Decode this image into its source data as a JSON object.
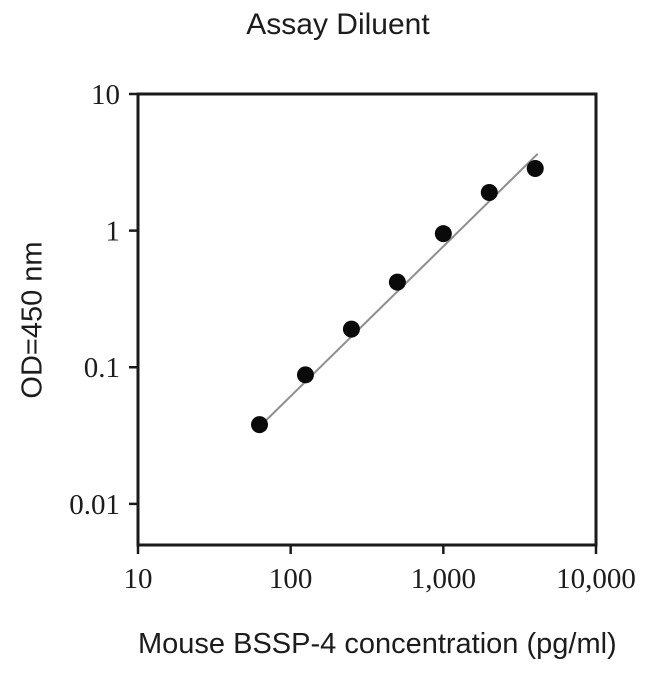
{
  "figure": {
    "background": "#ffffff"
  },
  "chart_data": {
    "type": "scatter",
    "title": "Assay Diluent",
    "xlabel": "Mouse BSSP-4 concentration (pg/ml)",
    "ylabel": "OD=450 nm",
    "x_scale": "log",
    "y_scale": "log",
    "xlim": [
      10,
      10000
    ],
    "ylim": [
      0.005,
      10
    ],
    "grid": false,
    "legend": false,
    "x_ticks": [
      {
        "value": 10,
        "label": "10"
      },
      {
        "value": 100,
        "label": "100"
      },
      {
        "value": 1000,
        "label": "1,000"
      },
      {
        "value": 10000,
        "label": "10,000"
      }
    ],
    "y_ticks": [
      {
        "value": 10,
        "label": "10"
      },
      {
        "value": 1,
        "label": "1"
      },
      {
        "value": 0.1,
        "label": "0.1"
      },
      {
        "value": 0.01,
        "label": "0.01"
      }
    ],
    "series": [
      {
        "name": "standard-curve-fit-line",
        "type": "line",
        "color": "#8f8f8f",
        "points": [
          {
            "x": 63,
            "y": 0.037
          },
          {
            "x": 4150,
            "y": 3.65
          }
        ]
      },
      {
        "name": "standard-points",
        "type": "scatter",
        "marker": "circle",
        "color": "#0a0a0a",
        "points": [
          {
            "x": 62.5,
            "y": 0.038
          },
          {
            "x": 125,
            "y": 0.088
          },
          {
            "x": 250,
            "y": 0.19
          },
          {
            "x": 500,
            "y": 0.42
          },
          {
            "x": 1000,
            "y": 0.95
          },
          {
            "x": 2000,
            "y": 1.9
          },
          {
            "x": 4000,
            "y": 2.85
          }
        ]
      }
    ]
  },
  "colors": {
    "axis": "#1a1a1a",
    "text": "#1c1c1c",
    "marker": "#0a0a0a",
    "fit_line": "#8f8f8f"
  }
}
